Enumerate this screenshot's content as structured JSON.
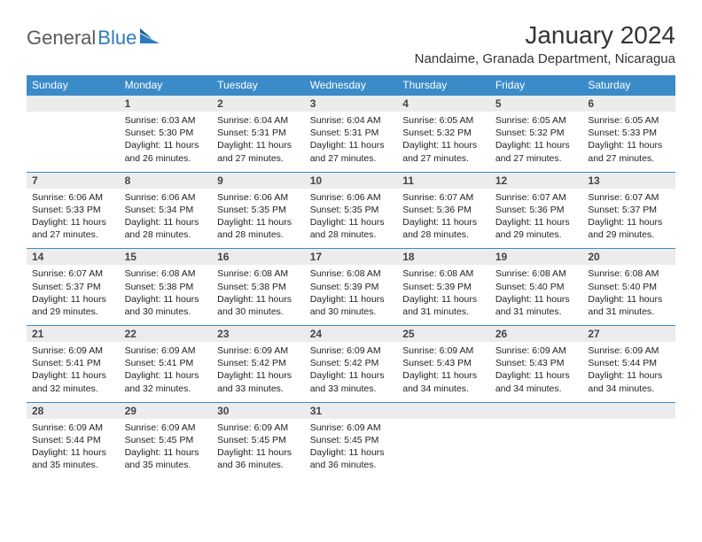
{
  "logo": {
    "part1": "General",
    "part2": "Blue"
  },
  "title": "January 2024",
  "location": "Nandaime, Granada Department, Nicaragua",
  "colors": {
    "header_bg": "#3b8bc9",
    "header_text": "#ffffff",
    "daynum_bg": "#ececec",
    "row_border": "#3b8bc9",
    "logo_gray": "#5a5a5a",
    "logo_blue": "#2b7bbf"
  },
  "weekdays": [
    "Sunday",
    "Monday",
    "Tuesday",
    "Wednesday",
    "Thursday",
    "Friday",
    "Saturday"
  ],
  "first_weekday_index": 1,
  "days_in_month": 31,
  "days": {
    "1": {
      "sunrise": "6:03 AM",
      "sunset": "5:30 PM",
      "daylight": "11 hours and 26 minutes."
    },
    "2": {
      "sunrise": "6:04 AM",
      "sunset": "5:31 PM",
      "daylight": "11 hours and 27 minutes."
    },
    "3": {
      "sunrise": "6:04 AM",
      "sunset": "5:31 PM",
      "daylight": "11 hours and 27 minutes."
    },
    "4": {
      "sunrise": "6:05 AM",
      "sunset": "5:32 PM",
      "daylight": "11 hours and 27 minutes."
    },
    "5": {
      "sunrise": "6:05 AM",
      "sunset": "5:32 PM",
      "daylight": "11 hours and 27 minutes."
    },
    "6": {
      "sunrise": "6:05 AM",
      "sunset": "5:33 PM",
      "daylight": "11 hours and 27 minutes."
    },
    "7": {
      "sunrise": "6:06 AM",
      "sunset": "5:33 PM",
      "daylight": "11 hours and 27 minutes."
    },
    "8": {
      "sunrise": "6:06 AM",
      "sunset": "5:34 PM",
      "daylight": "11 hours and 28 minutes."
    },
    "9": {
      "sunrise": "6:06 AM",
      "sunset": "5:35 PM",
      "daylight": "11 hours and 28 minutes."
    },
    "10": {
      "sunrise": "6:06 AM",
      "sunset": "5:35 PM",
      "daylight": "11 hours and 28 minutes."
    },
    "11": {
      "sunrise": "6:07 AM",
      "sunset": "5:36 PM",
      "daylight": "11 hours and 28 minutes."
    },
    "12": {
      "sunrise": "6:07 AM",
      "sunset": "5:36 PM",
      "daylight": "11 hours and 29 minutes."
    },
    "13": {
      "sunrise": "6:07 AM",
      "sunset": "5:37 PM",
      "daylight": "11 hours and 29 minutes."
    },
    "14": {
      "sunrise": "6:07 AM",
      "sunset": "5:37 PM",
      "daylight": "11 hours and 29 minutes."
    },
    "15": {
      "sunrise": "6:08 AM",
      "sunset": "5:38 PM",
      "daylight": "11 hours and 30 minutes."
    },
    "16": {
      "sunrise": "6:08 AM",
      "sunset": "5:38 PM",
      "daylight": "11 hours and 30 minutes."
    },
    "17": {
      "sunrise": "6:08 AM",
      "sunset": "5:39 PM",
      "daylight": "11 hours and 30 minutes."
    },
    "18": {
      "sunrise": "6:08 AM",
      "sunset": "5:39 PM",
      "daylight": "11 hours and 31 minutes."
    },
    "19": {
      "sunrise": "6:08 AM",
      "sunset": "5:40 PM",
      "daylight": "11 hours and 31 minutes."
    },
    "20": {
      "sunrise": "6:08 AM",
      "sunset": "5:40 PM",
      "daylight": "11 hours and 31 minutes."
    },
    "21": {
      "sunrise": "6:09 AM",
      "sunset": "5:41 PM",
      "daylight": "11 hours and 32 minutes."
    },
    "22": {
      "sunrise": "6:09 AM",
      "sunset": "5:41 PM",
      "daylight": "11 hours and 32 minutes."
    },
    "23": {
      "sunrise": "6:09 AM",
      "sunset": "5:42 PM",
      "daylight": "11 hours and 33 minutes."
    },
    "24": {
      "sunrise": "6:09 AM",
      "sunset": "5:42 PM",
      "daylight": "11 hours and 33 minutes."
    },
    "25": {
      "sunrise": "6:09 AM",
      "sunset": "5:43 PM",
      "daylight": "11 hours and 34 minutes."
    },
    "26": {
      "sunrise": "6:09 AM",
      "sunset": "5:43 PM",
      "daylight": "11 hours and 34 minutes."
    },
    "27": {
      "sunrise": "6:09 AM",
      "sunset": "5:44 PM",
      "daylight": "11 hours and 34 minutes."
    },
    "28": {
      "sunrise": "6:09 AM",
      "sunset": "5:44 PM",
      "daylight": "11 hours and 35 minutes."
    },
    "29": {
      "sunrise": "6:09 AM",
      "sunset": "5:45 PM",
      "daylight": "11 hours and 35 minutes."
    },
    "30": {
      "sunrise": "6:09 AM",
      "sunset": "5:45 PM",
      "daylight": "11 hours and 36 minutes."
    },
    "31": {
      "sunrise": "6:09 AM",
      "sunset": "5:45 PM",
      "daylight": "11 hours and 36 minutes."
    }
  },
  "labels": {
    "sunrise": "Sunrise:",
    "sunset": "Sunset:",
    "daylight": "Daylight:"
  }
}
